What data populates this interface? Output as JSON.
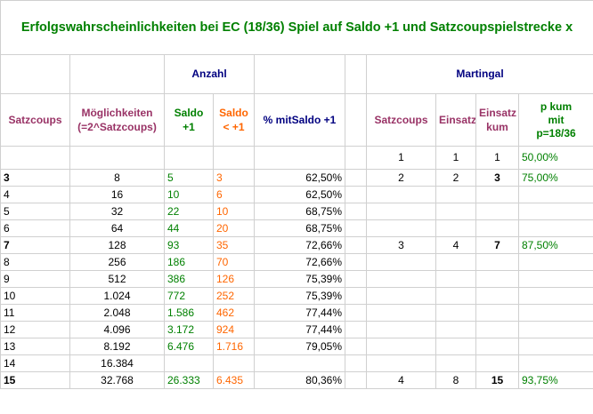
{
  "title": "Erfolgswahrscheinlichkeiten bei EC (18/36) Spiel auf Saldo +1 und Satzcoupspielstrecke x",
  "group_headers": {
    "anzahl": "Anzahl",
    "martingal": "Martingal"
  },
  "column_headers": {
    "satzcoups": "Satzcoups",
    "moeglichkeiten_1": "Möglichkeiten",
    "moeglichkeiten_2": "(=2^Satzcoups)",
    "saldo_plus_1": "Saldo",
    "saldo_plus_2": "+1",
    "saldo_minus_1": "Saldo",
    "saldo_minus_2": "< +1",
    "pct_saldo": "% mitSaldo +1",
    "m_satzcoups": "Satzcoups",
    "m_einsatz": "Einsatz",
    "m_einsatz_kum_1": "Einsatz",
    "m_einsatz_kum_2": "kum",
    "m_pkum_1": "p kum",
    "m_pkum_2": "mit",
    "m_pkum_3": "p=18/36"
  },
  "rows": [
    {
      "satz": "",
      "moeg": "",
      "plus": "",
      "minus": "",
      "pct": "",
      "m_satz": "1",
      "m_einsatz": "1",
      "m_kum": "1",
      "m_p": "50,00%",
      "bold": false
    },
    {
      "satz": "3",
      "moeg": "8",
      "plus": "5",
      "minus": "3",
      "pct": "62,50%",
      "m_satz": "2",
      "m_einsatz": "2",
      "m_kum": "3",
      "m_p": "75,00%",
      "bold": true
    },
    {
      "satz": "4",
      "moeg": "16",
      "plus": "10",
      "minus": "6",
      "pct": "62,50%",
      "m_satz": "",
      "m_einsatz": "",
      "m_kum": "",
      "m_p": "",
      "bold": false
    },
    {
      "satz": "5",
      "moeg": "32",
      "plus": "22",
      "minus": "10",
      "pct": "68,75%",
      "m_satz": "",
      "m_einsatz": "",
      "m_kum": "",
      "m_p": "",
      "bold": false
    },
    {
      "satz": "6",
      "moeg": "64",
      "plus": "44",
      "minus": "20",
      "pct": "68,75%",
      "m_satz": "",
      "m_einsatz": "",
      "m_kum": "",
      "m_p": "",
      "bold": false
    },
    {
      "satz": "7",
      "moeg": "128",
      "plus": "93",
      "minus": "35",
      "pct": "72,66%",
      "m_satz": "3",
      "m_einsatz": "4",
      "m_kum": "7",
      "m_p": "87,50%",
      "bold": true
    },
    {
      "satz": "8",
      "moeg": "256",
      "plus": "186",
      "minus": "70",
      "pct": "72,66%",
      "m_satz": "",
      "m_einsatz": "",
      "m_kum": "",
      "m_p": "",
      "bold": false
    },
    {
      "satz": "9",
      "moeg": "512",
      "plus": "386",
      "minus": "126",
      "pct": "75,39%",
      "m_satz": "",
      "m_einsatz": "",
      "m_kum": "",
      "m_p": "",
      "bold": false
    },
    {
      "satz": "10",
      "moeg": "1.024",
      "plus": "772",
      "minus": "252",
      "pct": "75,39%",
      "m_satz": "",
      "m_einsatz": "",
      "m_kum": "",
      "m_p": "",
      "bold": false
    },
    {
      "satz": "11",
      "moeg": "2.048",
      "plus": "1.586",
      "minus": "462",
      "pct": "77,44%",
      "m_satz": "",
      "m_einsatz": "",
      "m_kum": "",
      "m_p": "",
      "bold": false
    },
    {
      "satz": "12",
      "moeg": "4.096",
      "plus": "3.172",
      "minus": "924",
      "pct": "77,44%",
      "m_satz": "",
      "m_einsatz": "",
      "m_kum": "",
      "m_p": "",
      "bold": false
    },
    {
      "satz": "13",
      "moeg": "8.192",
      "plus": "6.476",
      "minus": "1.716",
      "pct": "79,05%",
      "m_satz": "",
      "m_einsatz": "",
      "m_kum": "",
      "m_p": "",
      "bold": false
    },
    {
      "satz": "14",
      "moeg": "16.384",
      "plus": "",
      "minus": "",
      "pct": "",
      "m_satz": "",
      "m_einsatz": "",
      "m_kum": "",
      "m_p": "",
      "bold": false
    },
    {
      "satz": "15",
      "moeg": "32.768",
      "plus": "26.333",
      "minus": "6.435",
      "pct": "80,36%",
      "m_satz": "4",
      "m_einsatz": "8",
      "m_kum": "15",
      "m_p": "93,75%",
      "bold": true
    }
  ]
}
